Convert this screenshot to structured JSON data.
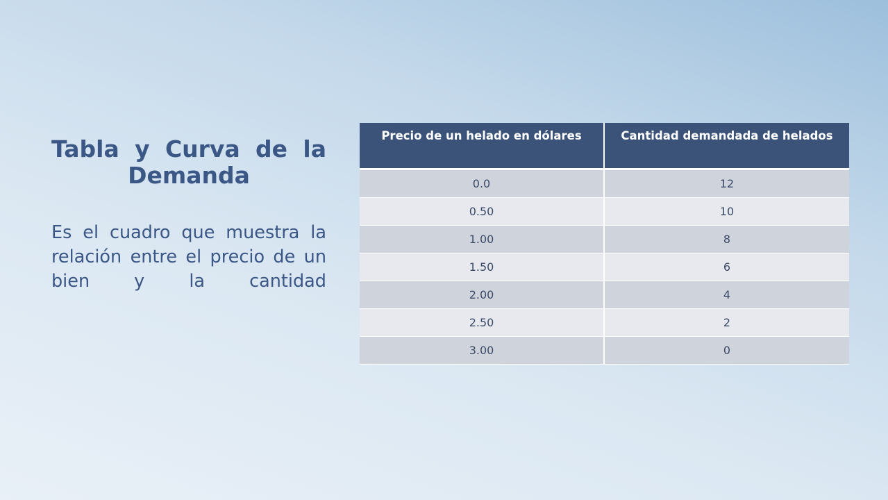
{
  "slide": {
    "title": "Tabla y Curva de la Demanda",
    "body": "Es el cuadro que muestra la relación entre el precio de un bien y la cantidad"
  },
  "table": {
    "headers": [
      "Precio de un helado en dólares",
      "Cantidad demandada de helados"
    ],
    "rows": [
      [
        "0.0",
        "12"
      ],
      [
        "0.50",
        "10"
      ],
      [
        "1.00",
        "8"
      ],
      [
        "1.50",
        "6"
      ],
      [
        "2.00",
        "4"
      ],
      [
        "2.50",
        "2"
      ],
      [
        "3.00",
        "0"
      ]
    ]
  },
  "colors": {
    "title_text": "#3b5786",
    "header_bg": "#3b5279",
    "row_dark": "#cfd3dc",
    "row_light": "#e7e9ee"
  }
}
